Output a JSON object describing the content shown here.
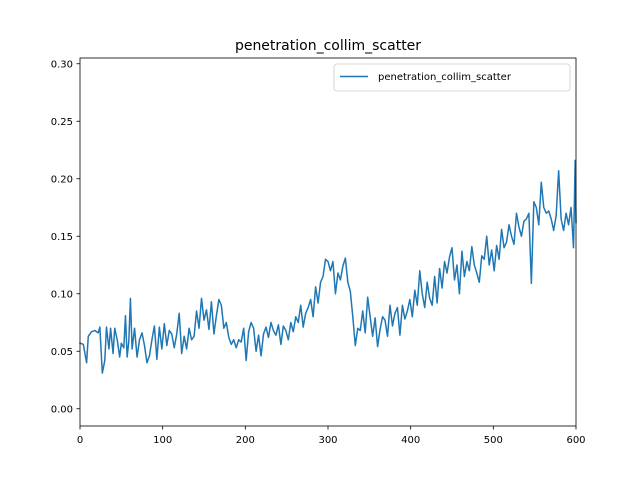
{
  "chart_data": {
    "type": "line",
    "title": "penetration_collim_scatter",
    "xlabel": "",
    "ylabel": "",
    "xlim": [
      0,
      600
    ],
    "ylim": [
      -0.015,
      0.305
    ],
    "xticks": [
      "0",
      "100",
      "200",
      "300",
      "400",
      "500",
      "600"
    ],
    "yticks": [
      "0.00",
      "0.05",
      "0.10",
      "0.15",
      "0.20",
      "0.25",
      "0.30"
    ],
    "grid": false,
    "legend": "top-right",
    "series": [
      {
        "name": "penetration_collim_scatter",
        "color": "#1f77b4",
        "points": [
          [
            0,
            0.057
          ],
          [
            4,
            0.056
          ],
          [
            8,
            0.04
          ],
          [
            10,
            0.063
          ],
          [
            14,
            0.067
          ],
          [
            18,
            0.068
          ],
          [
            22,
            0.066
          ],
          [
            24,
            0.071
          ],
          [
            27,
            0.031
          ],
          [
            30,
            0.042
          ],
          [
            32,
            0.071
          ],
          [
            35,
            0.052
          ],
          [
            37,
            0.07
          ],
          [
            40,
            0.048
          ],
          [
            42,
            0.07
          ],
          [
            45,
            0.06
          ],
          [
            48,
            0.045
          ],
          [
            50,
            0.057
          ],
          [
            53,
            0.053
          ],
          [
            55,
            0.081
          ],
          [
            57,
            0.045
          ],
          [
            59,
            0.058
          ],
          [
            61,
            0.096
          ],
          [
            63,
            0.052
          ],
          [
            66,
            0.07
          ],
          [
            69,
            0.045
          ],
          [
            72,
            0.06
          ],
          [
            75,
            0.066
          ],
          [
            78,
            0.055
          ],
          [
            81,
            0.04
          ],
          [
            84,
            0.046
          ],
          [
            87,
            0.06
          ],
          [
            90,
            0.072
          ],
          [
            93,
            0.043
          ],
          [
            96,
            0.071
          ],
          [
            99,
            0.052
          ],
          [
            102,
            0.074
          ],
          [
            105,
            0.055
          ],
          [
            108,
            0.068
          ],
          [
            111,
            0.065
          ],
          [
            114,
            0.053
          ],
          [
            117,
            0.065
          ],
          [
            120,
            0.083
          ],
          [
            123,
            0.048
          ],
          [
            126,
            0.063
          ],
          [
            129,
            0.052
          ],
          [
            132,
            0.07
          ],
          [
            135,
            0.06
          ],
          [
            138,
            0.063
          ],
          [
            141,
            0.085
          ],
          [
            144,
            0.07
          ],
          [
            147,
            0.096
          ],
          [
            150,
            0.077
          ],
          [
            153,
            0.086
          ],
          [
            156,
            0.069
          ],
          [
            159,
            0.093
          ],
          [
            162,
            0.065
          ],
          [
            165,
            0.081
          ],
          [
            168,
            0.095
          ],
          [
            171,
            0.09
          ],
          [
            174,
            0.07
          ],
          [
            177,
            0.075
          ],
          [
            180,
            0.062
          ],
          [
            183,
            0.056
          ],
          [
            186,
            0.06
          ],
          [
            189,
            0.053
          ],
          [
            192,
            0.06
          ],
          [
            195,
            0.058
          ],
          [
            198,
            0.07
          ],
          [
            201,
            0.042
          ],
          [
            204,
            0.067
          ],
          [
            207,
            0.075
          ],
          [
            210,
            0.07
          ],
          [
            213,
            0.05
          ],
          [
            216,
            0.064
          ],
          [
            219,
            0.046
          ],
          [
            222,
            0.065
          ],
          [
            225,
            0.071
          ],
          [
            228,
            0.062
          ],
          [
            231,
            0.075
          ],
          [
            234,
            0.068
          ],
          [
            237,
            0.064
          ],
          [
            240,
            0.073
          ],
          [
            243,
            0.056
          ],
          [
            246,
            0.072
          ],
          [
            249,
            0.068
          ],
          [
            252,
            0.06
          ],
          [
            255,
            0.075
          ],
          [
            258,
            0.067
          ],
          [
            261,
            0.08
          ],
          [
            264,
            0.075
          ],
          [
            267,
            0.09
          ],
          [
            270,
            0.071
          ],
          [
            273,
            0.083
          ],
          [
            276,
            0.088
          ],
          [
            279,
            0.095
          ],
          [
            282,
            0.08
          ],
          [
            285,
            0.106
          ],
          [
            288,
            0.092
          ],
          [
            291,
            0.11
          ],
          [
            294,
            0.115
          ],
          [
            297,
            0.13
          ],
          [
            300,
            0.128
          ],
          [
            303,
            0.12
          ],
          [
            306,
            0.128
          ],
          [
            309,
            0.1
          ],
          [
            312,
            0.118
          ],
          [
            315,
            0.112
          ],
          [
            318,
            0.124
          ],
          [
            321,
            0.131
          ],
          [
            324,
            0.11
          ],
          [
            327,
            0.102
          ],
          [
            330,
            0.08
          ],
          [
            333,
            0.055
          ],
          [
            336,
            0.07
          ],
          [
            339,
            0.068
          ],
          [
            342,
            0.085
          ],
          [
            345,
            0.066
          ],
          [
            348,
            0.097
          ],
          [
            351,
            0.08
          ],
          [
            354,
            0.063
          ],
          [
            357,
            0.079
          ],
          [
            360,
            0.054
          ],
          [
            363,
            0.069
          ],
          [
            366,
            0.08
          ],
          [
            369,
            0.077
          ],
          [
            372,
            0.063
          ],
          [
            375,
            0.09
          ],
          [
            378,
            0.072
          ],
          [
            381,
            0.083
          ],
          [
            384,
            0.088
          ],
          [
            387,
            0.064
          ],
          [
            390,
            0.09
          ],
          [
            393,
            0.078
          ],
          [
            396,
            0.085
          ],
          [
            399,
            0.095
          ],
          [
            402,
            0.08
          ],
          [
            405,
            0.103
          ],
          [
            408,
            0.09
          ],
          [
            411,
            0.12
          ],
          [
            414,
            0.1
          ],
          [
            417,
            0.088
          ],
          [
            420,
            0.11
          ],
          [
            423,
            0.096
          ],
          [
            426,
            0.09
          ],
          [
            429,
            0.115
          ],
          [
            432,
            0.092
          ],
          [
            435,
            0.122
          ],
          [
            438,
            0.105
          ],
          [
            441,
            0.128
          ],
          [
            444,
            0.118
          ],
          [
            447,
            0.132
          ],
          [
            450,
            0.14
          ],
          [
            453,
            0.112
          ],
          [
            456,
            0.125
          ],
          [
            459,
            0.1
          ],
          [
            462,
            0.137
          ],
          [
            465,
            0.115
          ],
          [
            468,
            0.128
          ],
          [
            471,
            0.12
          ],
          [
            474,
            0.141
          ],
          [
            477,
            0.125
          ],
          [
            480,
            0.118
          ],
          [
            483,
            0.11
          ],
          [
            486,
            0.133
          ],
          [
            489,
            0.13
          ],
          [
            492,
            0.15
          ],
          [
            495,
            0.125
          ],
          [
            498,
            0.138
          ],
          [
            501,
            0.12
          ],
          [
            504,
            0.142
          ],
          [
            507,
            0.13
          ],
          [
            510,
            0.156
          ],
          [
            513,
            0.14
          ],
          [
            516,
            0.145
          ],
          [
            519,
            0.16
          ],
          [
            522,
            0.15
          ],
          [
            525,
            0.143
          ],
          [
            528,
            0.17
          ],
          [
            531,
            0.158
          ],
          [
            534,
            0.15
          ],
          [
            537,
            0.163
          ],
          [
            540,
            0.165
          ],
          [
            543,
            0.17
          ],
          [
            546,
            0.109
          ],
          [
            549,
            0.18
          ],
          [
            552,
            0.175
          ],
          [
            555,
            0.16
          ],
          [
            558,
            0.197
          ],
          [
            561,
            0.175
          ],
          [
            564,
            0.17
          ],
          [
            567,
            0.172
          ],
          [
            570,
            0.165
          ],
          [
            573,
            0.155
          ],
          [
            576,
            0.168
          ],
          [
            579,
            0.207
          ],
          [
            582,
            0.165
          ],
          [
            585,
            0.155
          ],
          [
            588,
            0.17
          ],
          [
            591,
            0.16
          ],
          [
            594,
            0.175
          ],
          [
            597,
            0.14
          ],
          [
            599,
            0.216
          ],
          [
            600,
            0.162
          ]
        ]
      }
    ]
  }
}
